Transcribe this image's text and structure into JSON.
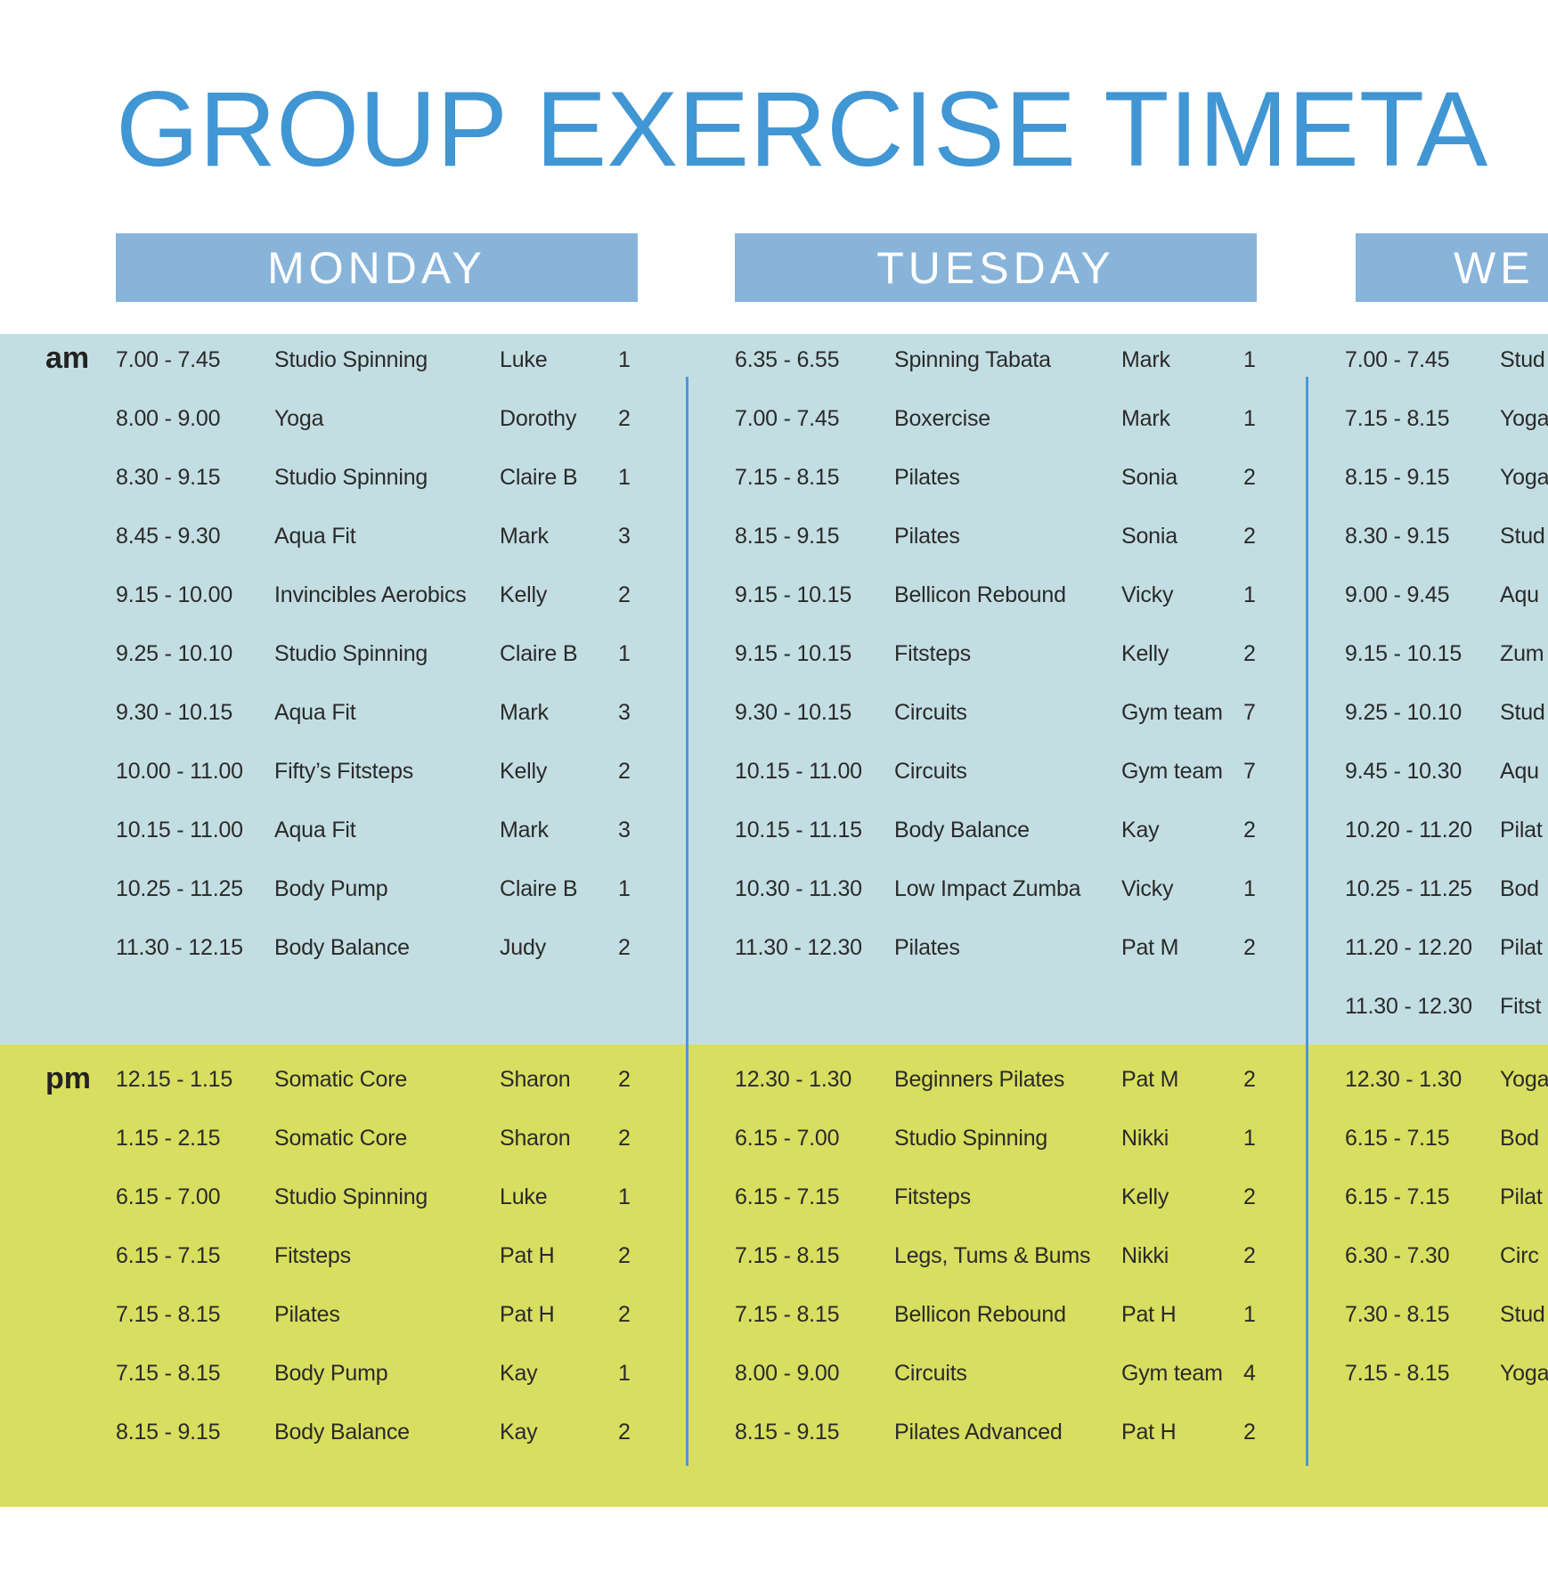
{
  "title": "GROUP EXERCISE TIMETA",
  "periods": {
    "am": "am",
    "pm": "pm"
  },
  "days": [
    {
      "name": "MONDAY",
      "am": [
        [
          "7.00 - 7.45",
          "Studio Spinning",
          "Luke",
          "1"
        ],
        [
          "8.00 - 9.00",
          "Yoga",
          "Dorothy",
          "2"
        ],
        [
          "8.30 - 9.15",
          "Studio Spinning",
          "Claire B",
          "1"
        ],
        [
          "8.45 - 9.30",
          "Aqua Fit",
          "Mark",
          "3"
        ],
        [
          "9.15 - 10.00",
          "Invincibles Aerobics",
          "Kelly",
          "2"
        ],
        [
          "9.25 - 10.10",
          "Studio Spinning",
          "Claire B",
          "1"
        ],
        [
          "9.30 - 10.15",
          "Aqua Fit",
          "Mark",
          "3"
        ],
        [
          "10.00 - 11.00",
          "Fifty’s Fitsteps",
          "Kelly",
          "2"
        ],
        [
          "10.15 - 11.00",
          "Aqua Fit",
          "Mark",
          "3"
        ],
        [
          "10.25 - 11.25",
          "Body Pump",
          "Claire B",
          "1"
        ],
        [
          "11.30 - 12.15",
          "Body Balance",
          "Judy",
          "2"
        ]
      ],
      "pm": [
        [
          "12.15 - 1.15",
          "Somatic Core",
          "Sharon",
          "2"
        ],
        [
          "1.15 - 2.15",
          "Somatic Core",
          "Sharon",
          "2"
        ],
        [
          "6.15 - 7.00",
          "Studio Spinning",
          "Luke",
          "1"
        ],
        [
          "6.15 - 7.15",
          "Fitsteps",
          "Pat H",
          "2"
        ],
        [
          "7.15 - 8.15",
          "Pilates",
          "Pat H",
          "2"
        ],
        [
          "7.15 - 8.15",
          "Body Pump",
          "Kay",
          "1"
        ],
        [
          "8.15 - 9.15",
          "Body Balance",
          "Kay",
          "2"
        ]
      ]
    },
    {
      "name": "TUESDAY",
      "am": [
        [
          "6.35 - 6.55",
          "Spinning Tabata",
          "Mark",
          "1"
        ],
        [
          "7.00 - 7.45",
          "Boxercise",
          "Mark",
          "1"
        ],
        [
          "7.15 - 8.15",
          "Pilates",
          "Sonia",
          "2"
        ],
        [
          "8.15 - 9.15",
          "Pilates",
          "Sonia",
          "2"
        ],
        [
          "9.15 - 10.15",
          "Bellicon Rebound",
          "Vicky",
          "1"
        ],
        [
          "9.15 - 10.15",
          "Fitsteps",
          "Kelly",
          "2"
        ],
        [
          "9.30 - 10.15",
          "Circuits",
          "Gym team",
          "7"
        ],
        [
          "10.15 - 11.00",
          "Circuits",
          "Gym team",
          "7"
        ],
        [
          "10.15 - 11.15",
          "Body Balance",
          "Kay",
          "2"
        ],
        [
          "10.30 - 11.30",
          "Low Impact Zumba",
          "Vicky",
          "1"
        ],
        [
          "11.30 - 12.30",
          "Pilates",
          "Pat M",
          "2"
        ]
      ],
      "pm": [
        [
          "12.30 - 1.30",
          "Beginners Pilates",
          "Pat M",
          "2"
        ],
        [
          "6.15 - 7.00",
          "Studio Spinning",
          "Nikki",
          "1"
        ],
        [
          "6.15 - 7.15",
          "Fitsteps",
          "Kelly",
          "2"
        ],
        [
          "7.15 - 8.15",
          "Legs, Tums & Bums",
          "Nikki",
          "2"
        ],
        [
          "7.15 - 8.15",
          "Bellicon Rebound",
          "Pat H",
          "1"
        ],
        [
          "8.00 - 9.00",
          "Circuits",
          "Gym team",
          "4"
        ],
        [
          "8.15 - 9.15",
          "Pilates Advanced",
          "Pat H",
          "2"
        ]
      ]
    },
    {
      "name": "WE",
      "am": [
        [
          "7.00 - 7.45",
          "Stud"
        ],
        [
          "7.15 - 8.15",
          "Yoga"
        ],
        [
          "8.15 - 9.15",
          "Yoga"
        ],
        [
          "8.30 - 9.15",
          "Stud"
        ],
        [
          "9.00 - 9.45",
          "Aqu"
        ],
        [
          "9.15 - 10.15",
          "Zum"
        ],
        [
          "9.25 - 10.10",
          "Stud"
        ],
        [
          "9.45 - 10.30",
          "Aqu"
        ],
        [
          "10.20 - 11.20",
          "Pilat"
        ],
        [
          "10.25 - 11.25",
          "Bod"
        ],
        [
          "11.20 - 12.20",
          "Pilat"
        ],
        [
          "11.30 - 12.30",
          "Fitst"
        ]
      ],
      "pm": [
        [
          "12.30 - 1.30",
          "Yoga"
        ],
        [
          "6.15 - 7.15",
          "Bod"
        ],
        [
          "6.15 - 7.15",
          "Pilat"
        ],
        [
          "6.30 - 7.30",
          "Circ"
        ],
        [
          "7.30 - 8.15",
          "Stud"
        ],
        [
          "7.15 - 8.15",
          "Yoga"
        ]
      ]
    }
  ],
  "colors": {
    "title": "#4196d4",
    "header": "#88b4da",
    "am_band": "#c3dee2",
    "pm_band": "#d8de5f",
    "divider": "#4a98d8"
  }
}
